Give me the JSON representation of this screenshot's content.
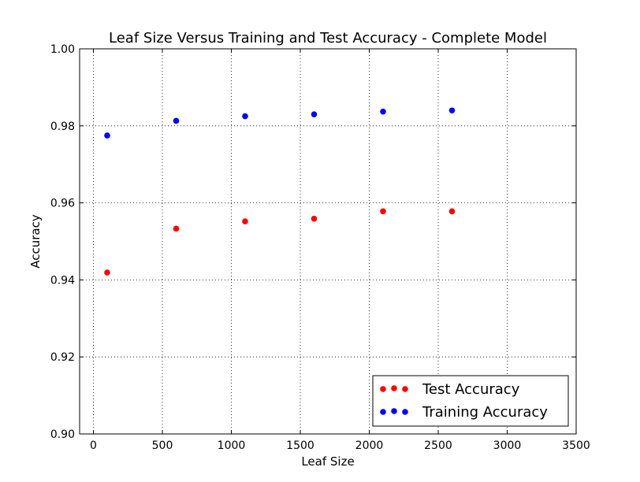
{
  "chart_data": {
    "type": "scatter",
    "title": "Leaf Size Versus Training and Test Accuracy - Complete Model",
    "xlabel": "Leaf Size",
    "ylabel": "Accuracy",
    "xlim": [
      -100,
      3500
    ],
    "ylim": [
      0.9,
      1.0
    ],
    "xticks": [
      0,
      500,
      1000,
      1500,
      2000,
      2500,
      3000,
      3500
    ],
    "xtick_labels": [
      "0",
      "500",
      "1000",
      "1500",
      "2000",
      "2500",
      "3000",
      "3500"
    ],
    "yticks": [
      0.9,
      0.92,
      0.94,
      0.96,
      0.98,
      1.0
    ],
    "ytick_labels": [
      "0.90",
      "0.92",
      "0.94",
      "0.96",
      "0.98",
      "1.00"
    ],
    "grid": true,
    "legend_position": "lower-right",
    "series": [
      {
        "name": "Test Accuracy",
        "color": "#ff0000",
        "x": [
          100,
          600,
          1100,
          1600,
          2100,
          2600
        ],
        "y": [
          0.9419,
          0.9533,
          0.9552,
          0.9559,
          0.9578,
          0.9578
        ]
      },
      {
        "name": "Training Accuracy",
        "color": "#0000ff",
        "x": [
          100,
          600,
          1100,
          1600,
          2100,
          2600
        ],
        "y": [
          0.9775,
          0.9813,
          0.9825,
          0.983,
          0.9837,
          0.984
        ]
      }
    ]
  }
}
